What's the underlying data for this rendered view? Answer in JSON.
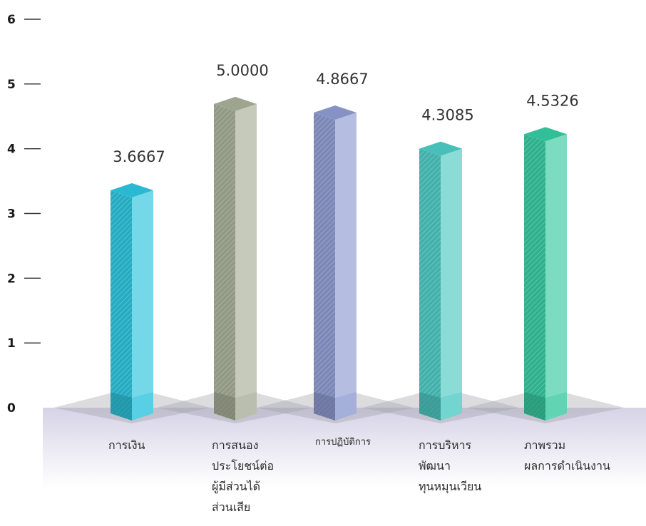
{
  "chart_data": {
    "type": "bar",
    "title": "",
    "xlabel": "",
    "ylabel": "",
    "ylim": [
      0,
      6
    ],
    "y_ticks": [
      0,
      1,
      2,
      3,
      4,
      5,
      6
    ],
    "grid": false,
    "legend": "none",
    "categories": [
      "การเงิน",
      "การสนองประโยชน์ต่อผู้มีส่วนได้ส่วนเสีย",
      "การปฏิบัติการ",
      "การบริหารพัฒนาทุนหมุนเวียน",
      "ภาพรวมผลการดำเนินงาน"
    ],
    "category_lines": [
      [
        "การเงิน"
      ],
      [
        "การสนอง",
        "ประโยชน์ต่อ",
        "ผู้มีส่วนได้",
        "ส่วนเสีย"
      ],
      [
        "การปฏิบัติการ"
      ],
      [
        "การบริหาร",
        "พัฒนา",
        "ทุนหมุนเวียน"
      ],
      [
        "ภาพรวม",
        "ผลการดำเนินงาน"
      ]
    ],
    "values": [
      3.6667,
      5.0,
      4.8667,
      4.3085,
      4.5326
    ],
    "value_labels": [
      "3.6667",
      "5.0000",
      "4.8667",
      "4.3085",
      "4.5326"
    ],
    "colors": [
      "#2bc3dd",
      "#a6ae96",
      "#8d9ad0",
      "#4cc9c2",
      "#35c9a0"
    ]
  }
}
